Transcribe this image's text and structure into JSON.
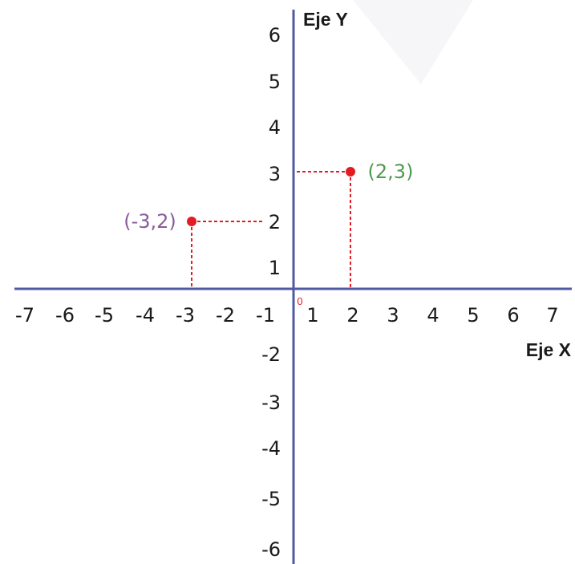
{
  "axes": {
    "x_title": "Eje X",
    "y_title": "Eje Y",
    "origin_label": "0",
    "x_ticks": [
      "-7",
      "-6",
      "-5",
      "-4",
      "-3",
      "-2",
      "-1",
      "1",
      "2",
      "3",
      "4",
      "5",
      "6",
      "7"
    ],
    "y_ticks": [
      "6",
      "5",
      "4",
      "3",
      "2",
      "1",
      "-2",
      "-3",
      "-4",
      "-5",
      "-6"
    ],
    "axis_color": "#4f5aa0"
  },
  "points": [
    {
      "label": "(-3,2)",
      "x": -3,
      "y": 2,
      "label_color": "#8a5a9a"
    },
    {
      "label": "(2,3)",
      "x": 2,
      "y": 3,
      "label_color": "#4e9a4e"
    }
  ],
  "colors": {
    "point": "#e31b23",
    "guide": "#e31b23",
    "origin": "#e31b23"
  }
}
